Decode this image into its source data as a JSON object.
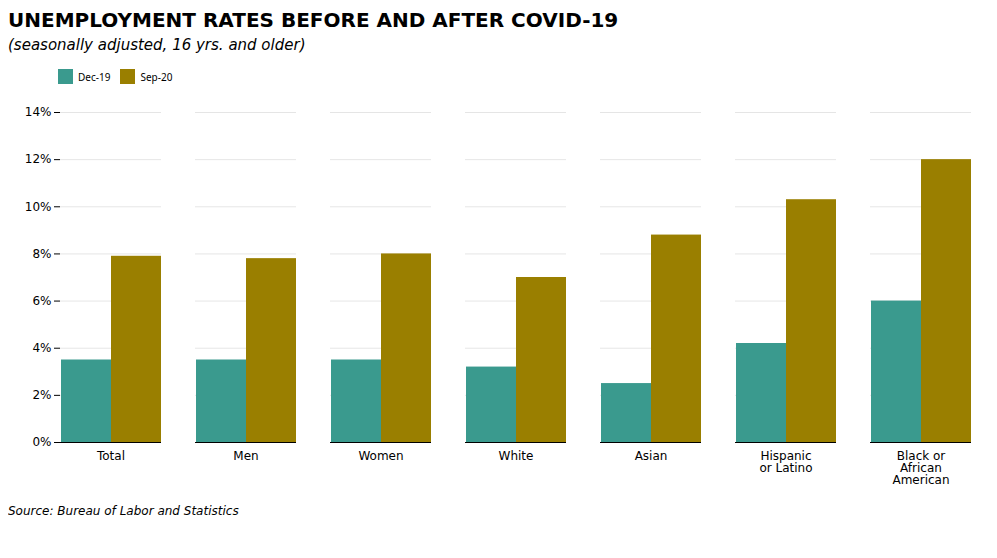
{
  "chart_data": {
    "type": "bar",
    "title": "UNEMPLOYMENT RATES BEFORE AND AFTER COVID-19",
    "subtitle": "(seasonally adjusted, 16 yrs. and older)",
    "caption": "Source: Bureau of Labor and Statistics",
    "categories": [
      "Total",
      "Men",
      "Women",
      "White",
      "Asian",
      "Hispanic\nor Latino",
      "Black or\nAfrican\nAmerican"
    ],
    "series": [
      {
        "name": "Dec-19",
        "color": "#3a9a8e",
        "values": [
          3.5,
          3.5,
          3.5,
          3.2,
          2.5,
          4.2,
          6.0
        ]
      },
      {
        "name": "Sep-20",
        "color": "#9a7f00",
        "values": [
          7.9,
          7.8,
          8.0,
          7.0,
          8.8,
          10.3,
          12.0
        ]
      }
    ],
    "ylim": [
      0,
      14
    ],
    "yticks": [
      {
        "value": 0,
        "label": "0%"
      },
      {
        "value": 2,
        "label": "2%"
      },
      {
        "value": 4,
        "label": "4%"
      },
      {
        "value": 6,
        "label": "6%"
      },
      {
        "value": 8,
        "label": "8%"
      },
      {
        "value": 10,
        "label": "10%"
      },
      {
        "value": 12,
        "label": "12%"
      },
      {
        "value": 14,
        "label": "14%"
      }
    ],
    "grid": true,
    "legend": "upper left"
  }
}
